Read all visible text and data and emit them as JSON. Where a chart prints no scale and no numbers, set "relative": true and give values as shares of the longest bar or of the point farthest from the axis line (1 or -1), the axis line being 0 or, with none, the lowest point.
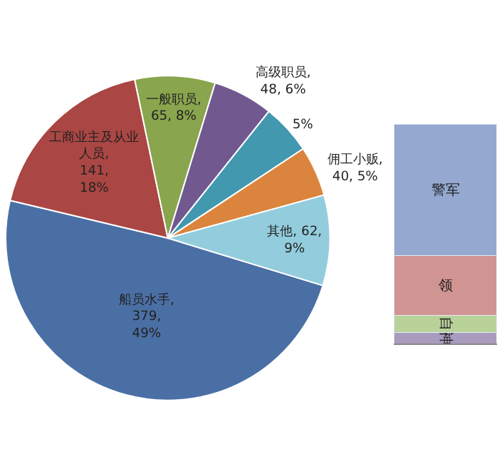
{
  "chart_data": [
    {
      "type": "pie",
      "categories": [
        "船员水手",
        "工商业主及从业人员",
        "一般职员",
        "高级职员",
        null,
        "佣工小贩",
        "其他"
      ],
      "values": [
        49,
        18,
        8,
        6,
        5,
        5,
        9
      ],
      "value_labels": [
        ", 379, 49%",
        ", 141, 18%",
        ", 65, 8%",
        ", 48, 6%",
        "5%",
        ", 40, 5%",
        ", 62, 9%"
      ],
      "colors": [
        "#4a6fa5",
        "#aa4643",
        "#89a54e",
        "#71588f",
        "#4198af",
        "#db843d",
        "#93cddd"
      ],
      "legend": false
    },
    {
      "type": "bar",
      "stacked": true,
      "relative": true,
      "categories": [
        null
      ],
      "series": [
        {
          "name": "神",
          "color": "#a99bbd",
          "values": [
            0.05
          ]
        },
        {
          "name": "自",
          "color": "#b9d29a",
          "values": [
            0.08
          ]
        },
        {
          "name": "领",
          "color": "#d09493",
          "values": [
            0.27
          ]
        },
        {
          "name": "警军",
          "color": "#94a8d0",
          "values": [
            0.6
          ]
        }
      ],
      "legend": false
    }
  ]
}
